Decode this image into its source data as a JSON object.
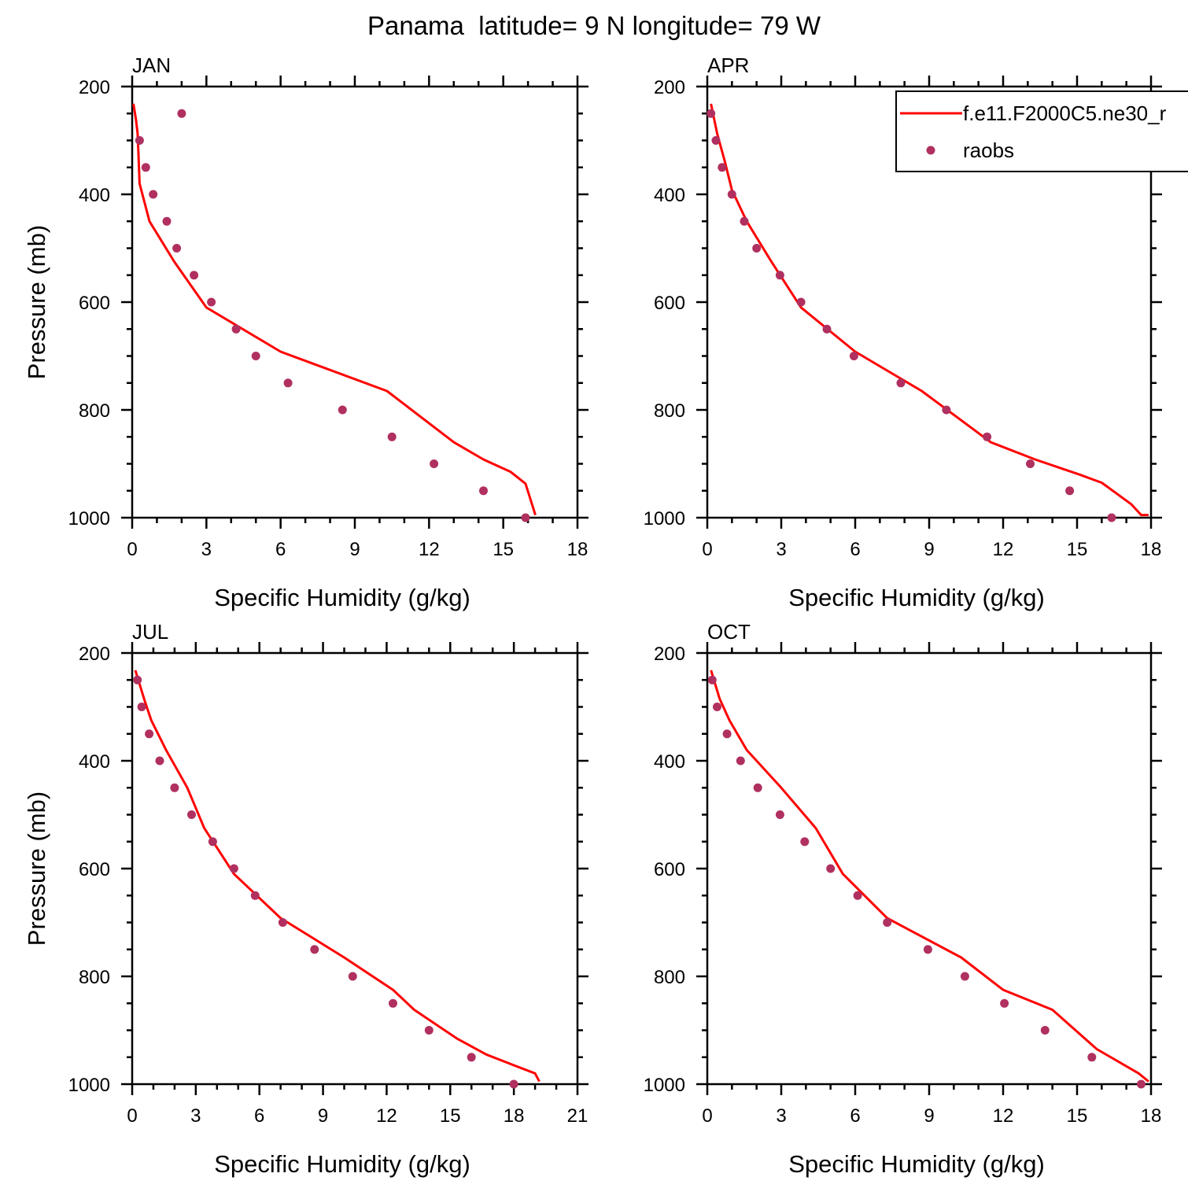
{
  "title": "Panama  latitude= 9 N longitude= 79 W",
  "colors": {
    "model": "#ff0000",
    "raobs": "#b03060",
    "axes": "#000000"
  },
  "legend": {
    "model_label": "f.e11.F2000C5.ne30_r",
    "raobs_label": "raobs"
  },
  "chart_data": [
    {
      "type": "line",
      "panel": "JAN",
      "title": "JAN",
      "xlabel": "Specific Humidity (g/kg)",
      "ylabel": "Pressure (mb)",
      "xlim": [
        0,
        18
      ],
      "ylim": [
        200,
        1000
      ],
      "y_inverted": true,
      "xticks": [
        0,
        3,
        6,
        9,
        12,
        15,
        18
      ],
      "yticks": [
        200,
        400,
        600,
        800,
        1000
      ],
      "series": [
        {
          "name": "f.e11.F2000C5.ne30_r",
          "kind": "line",
          "x": [
            0.05,
            0.15,
            0.22,
            0.25,
            0.3,
            0.7,
            1.7,
            3.0,
            6.0,
            10.3,
            13.0,
            14.2,
            15.3,
            15.9,
            16.3
          ],
          "y": [
            232,
            260,
            287,
            322,
            380,
            450,
            525,
            610,
            692,
            765,
            860,
            892,
            915,
            937,
            995
          ]
        },
        {
          "name": "raobs",
          "kind": "scatter",
          "x": [
            2.0,
            0.3,
            0.55,
            0.85,
            1.4,
            1.8,
            2.5,
            3.2,
            4.2,
            5.0,
            6.3,
            8.5,
            10.5,
            12.2,
            14.2,
            15.9
          ],
          "y": [
            250,
            300,
            350,
            400,
            450,
            500,
            550,
            600,
            650,
            700,
            750,
            800,
            850,
            900,
            950,
            1000
          ]
        }
      ]
    },
    {
      "type": "line",
      "panel": "APR",
      "title": "APR",
      "xlabel": "Specific Humidity (g/kg)",
      "ylabel": "",
      "xlim": [
        0,
        18
      ],
      "ylim": [
        200,
        1000
      ],
      "y_inverted": true,
      "xticks": [
        0,
        3,
        6,
        9,
        12,
        15,
        18
      ],
      "yticks": [
        200,
        400,
        600,
        800,
        1000
      ],
      "series": [
        {
          "name": "f.e11.F2000C5.ne30_r",
          "kind": "line",
          "x": [
            0.15,
            0.4,
            0.7,
            1.0,
            1.6,
            2.6,
            3.8,
            6.0,
            8.7,
            11.5,
            13.3,
            15.1,
            16.0,
            16.6,
            17.2,
            17.6,
            17.9
          ],
          "y": [
            232,
            287,
            337,
            392,
            450,
            525,
            610,
            692,
            765,
            860,
            892,
            920,
            935,
            955,
            975,
            995,
            995
          ]
        },
        {
          "name": "raobs",
          "kind": "scatter",
          "x": [
            0.15,
            0.35,
            0.6,
            1.0,
            1.5,
            2.0,
            2.95,
            3.8,
            4.85,
            5.95,
            7.85,
            9.7,
            11.35,
            13.1,
            14.7,
            16.4
          ],
          "y": [
            250,
            300,
            350,
            400,
            450,
            500,
            550,
            600,
            650,
            700,
            750,
            800,
            850,
            900,
            950,
            1000
          ]
        }
      ]
    },
    {
      "type": "line",
      "panel": "JUL",
      "title": "JUL",
      "xlabel": "Specific Humidity (g/kg)",
      "ylabel": "Pressure (mb)",
      "xlim": [
        0,
        21
      ],
      "ylim": [
        200,
        1000
      ],
      "y_inverted": true,
      "xticks": [
        0,
        3,
        6,
        9,
        12,
        15,
        18,
        21
      ],
      "yticks": [
        200,
        400,
        600,
        800,
        1000
      ],
      "series": [
        {
          "name": "f.e11.F2000C5.ne30_r",
          "kind": "line",
          "x": [
            0.15,
            0.6,
            0.9,
            1.6,
            2.6,
            3.4,
            4.8,
            7.0,
            10.0,
            12.3,
            13.3,
            15.3,
            16.7,
            18.0,
            19.0,
            19.2
          ],
          "y": [
            232,
            290,
            325,
            380,
            450,
            525,
            610,
            692,
            765,
            825,
            862,
            915,
            945,
            965,
            980,
            995
          ]
        },
        {
          "name": "raobs",
          "kind": "scatter",
          "x": [
            0.25,
            0.45,
            0.8,
            1.3,
            2.0,
            2.8,
            3.8,
            4.8,
            5.8,
            7.1,
            8.6,
            10.4,
            12.3,
            14.0,
            16.0,
            18.0
          ],
          "y": [
            250,
            300,
            350,
            400,
            450,
            500,
            550,
            600,
            650,
            700,
            750,
            800,
            850,
            900,
            950,
            1000
          ]
        }
      ]
    },
    {
      "type": "line",
      "panel": "OCT",
      "title": "OCT",
      "xlabel": "Specific Humidity (g/kg)",
      "ylabel": "",
      "xlim": [
        0,
        18
      ],
      "ylim": [
        200,
        1000
      ],
      "y_inverted": true,
      "xticks": [
        0,
        3,
        6,
        9,
        12,
        15,
        18
      ],
      "yticks": [
        200,
        400,
        600,
        800,
        1000
      ],
      "series": [
        {
          "name": "f.e11.F2000C5.ne30_r",
          "kind": "line",
          "x": [
            0.15,
            0.5,
            0.9,
            1.6,
            3.0,
            4.4,
            5.5,
            7.3,
            10.3,
            12.0,
            14.0,
            15.8,
            17.5,
            17.9
          ],
          "y": [
            232,
            285,
            325,
            380,
            450,
            525,
            610,
            692,
            765,
            825,
            862,
            935,
            980,
            995
          ]
        },
        {
          "name": "raobs",
          "kind": "scatter",
          "x": [
            0.2,
            0.4,
            0.8,
            1.35,
            2.05,
            2.95,
            3.95,
            5.0,
            6.1,
            7.3,
            8.95,
            10.45,
            12.05,
            13.7,
            15.6,
            17.6
          ],
          "y": [
            250,
            300,
            350,
            400,
            450,
            500,
            550,
            600,
            650,
            700,
            750,
            800,
            850,
            900,
            950,
            1000
          ]
        }
      ]
    }
  ]
}
